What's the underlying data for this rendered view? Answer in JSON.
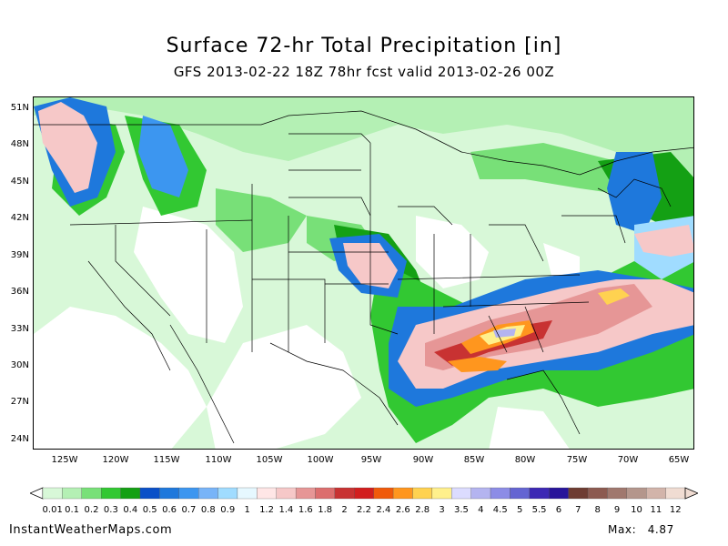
{
  "title": "Surface 72-hr Total Precipitation [in]",
  "subtitle": "GFS 2013-02-22 18Z 78hr fcst valid 2013-02-26 00Z",
  "lat_labels": [
    "51N",
    "48N",
    "45N",
    "42N",
    "39N",
    "36N",
    "33N",
    "30N",
    "27N",
    "24N"
  ],
  "lon_labels": [
    "125W",
    "120W",
    "115W",
    "110W",
    "105W",
    "100W",
    "95W",
    "90W",
    "85W",
    "80W",
    "75W",
    "70W",
    "65W"
  ],
  "colorbar": {
    "labels": [
      "0.01",
      "0.1",
      "0.2",
      "0.3",
      "0.4",
      "0.5",
      "0.6",
      "0.7",
      "0.8",
      "0.9",
      "1",
      "1.2",
      "1.4",
      "1.6",
      "1.8",
      "2",
      "2.2",
      "2.4",
      "2.6",
      "2.8",
      "3",
      "3.5",
      "4",
      "4.5",
      "5",
      "5.5",
      "6",
      "7",
      "8",
      "9",
      "10",
      "11",
      "12"
    ],
    "colors": [
      "#d8f8d8",
      "#b4f0b4",
      "#78e078",
      "#32c832",
      "#14a014",
      "#0a50c8",
      "#1e78dc",
      "#3c96f0",
      "#78b4f8",
      "#a0dcff",
      "#e6f8ff",
      "#ffe6e6",
      "#f6c8c8",
      "#e69696",
      "#dc6e6e",
      "#c83232",
      "#d21e1e",
      "#f05a0a",
      "#ff961e",
      "#ffd250",
      "#fff08c",
      "#dcdcff",
      "#b4b4f0",
      "#8c8ce6",
      "#6464d2",
      "#3c28b4",
      "#28149a",
      "#6e3c32",
      "#8c5a50",
      "#a0786e",
      "#b4968c",
      "#d2b4aa",
      "#f0dcd2"
    ]
  },
  "footer": {
    "source": "InstantWeatherMaps.com",
    "max_label": "Max:",
    "max_value": "4.87"
  }
}
